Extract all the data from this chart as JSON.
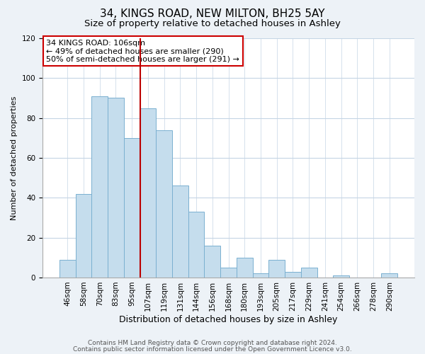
{
  "title": "34, KINGS ROAD, NEW MILTON, BH25 5AY",
  "subtitle": "Size of property relative to detached houses in Ashley",
  "xlabel": "Distribution of detached houses by size in Ashley",
  "ylabel": "Number of detached properties",
  "footnote1": "Contains HM Land Registry data © Crown copyright and database right 2024.",
  "footnote2": "Contains public sector information licensed under the Open Government Licence v3.0.",
  "bar_labels": [
    "46sqm",
    "58sqm",
    "70sqm",
    "83sqm",
    "95sqm",
    "107sqm",
    "119sqm",
    "131sqm",
    "144sqm",
    "156sqm",
    "168sqm",
    "180sqm",
    "193sqm",
    "205sqm",
    "217sqm",
    "229sqm",
    "241sqm",
    "254sqm",
    "266sqm",
    "278sqm",
    "290sqm"
  ],
  "bar_values": [
    9,
    42,
    91,
    90,
    70,
    85,
    74,
    46,
    33,
    16,
    5,
    10,
    2,
    9,
    3,
    5,
    0,
    1,
    0,
    0,
    2
  ],
  "bar_color": "#c5dded",
  "bar_edge_color": "#7ab0d0",
  "vline_color": "#bb0000",
  "annotation_text": "34 KINGS ROAD: 106sqm\n← 49% of detached houses are smaller (290)\n50% of semi-detached houses are larger (291) →",
  "annotation_box_color": "#ffffff",
  "annotation_box_edge_color": "#cc0000",
  "ylim": [
    0,
    120
  ],
  "yticks": [
    0,
    20,
    40,
    60,
    80,
    100,
    120
  ],
  "background_color": "#edf2f7",
  "plot_bg_color": "#ffffff",
  "grid_color": "#c5d5e5",
  "title_fontsize": 11,
  "subtitle_fontsize": 9.5,
  "xlabel_fontsize": 9,
  "ylabel_fontsize": 8,
  "tick_fontsize": 7.5,
  "annotation_fontsize": 8,
  "footnote_fontsize": 6.5
}
